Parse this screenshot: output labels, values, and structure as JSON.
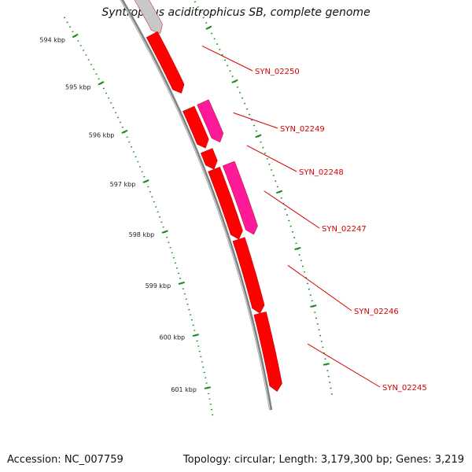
{
  "title": "Syntrophus aciditrophicus SB, complete genome",
  "footer": {
    "accession": "Accession: NC_007759",
    "summary": "Topology: circular; Length: 3,179,300 bp; Genes: 3,219"
  },
  "ticks": [
    {
      "label": "594 kbp",
      "kbp": 594
    },
    {
      "label": "595 kbp",
      "kbp": 595
    },
    {
      "label": "596 kbp",
      "kbp": 596
    },
    {
      "label": "597 kbp",
      "kbp": 597
    },
    {
      "label": "598 kbp",
      "kbp": 598
    },
    {
      "label": "599 kbp",
      "kbp": 599
    },
    {
      "label": "600 kbp",
      "kbp": 600
    },
    {
      "label": "601 kbp",
      "kbp": 601
    }
  ],
  "genes": [
    {
      "name": "SYN_02250",
      "start": 594.65,
      "end": 595.8
    },
    {
      "name": "SYN_02249",
      "start": 596.1,
      "end": 596.85
    },
    {
      "name": "SYN_02248",
      "start": 596.9,
      "end": 597.25
    },
    {
      "name": "SYN_02247",
      "start": 597.25,
      "end": 598.55
    },
    {
      "name": "SYN_02246",
      "start": 598.55,
      "end": 599.9
    },
    {
      "name": "SYN_02245",
      "start": 599.9,
      "end": 601.3
    }
  ],
  "colors": {
    "cds": "#ff0000",
    "cds_highlight": "#ff1a99",
    "grey_feature": "#c8c8c8",
    "backbone": "#808080",
    "tick": "#1a8a1a",
    "label": "#d40000"
  }
}
